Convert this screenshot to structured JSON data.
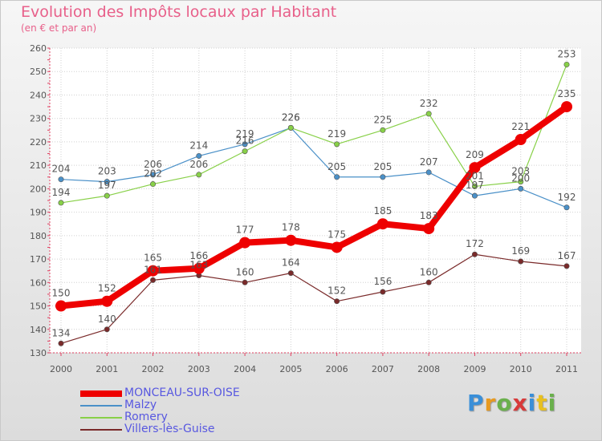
{
  "header": {
    "title": "Evolution des Impôts locaux par Habitant",
    "subtitle": "(en € et par an)"
  },
  "brand": {
    "logo_letters": [
      "P",
      "r",
      "o",
      "x",
      "i",
      "t",
      "i"
    ],
    "logo_colors": [
      "#3a8fd8",
      "#e89a20",
      "#6ab04c",
      "#d83a3a",
      "#3a8fd8",
      "#e8c020",
      "#6ab04c"
    ]
  },
  "chart_data": {
    "type": "line",
    "categories": [
      "2000",
      "2001",
      "2002",
      "2003",
      "2004",
      "2005",
      "2006",
      "2007",
      "2008",
      "2009",
      "2010",
      "2011"
    ],
    "ylim": [
      130,
      260
    ],
    "yticks": [
      "130",
      "140",
      "150",
      "160",
      "170",
      "180",
      "190",
      "200",
      "210",
      "220",
      "230",
      "240",
      "250",
      "260"
    ],
    "grid": true,
    "legend_position": "bottom-left",
    "series": [
      {
        "name": "MONCEAU-SUR-OISE",
        "color": "#ee0000",
        "emphasis": true,
        "values": [
          150,
          152,
          165,
          166,
          177,
          178,
          175,
          185,
          183,
          209,
          221,
          235
        ],
        "labels": [
          "150",
          "152",
          "165",
          "166",
          "177",
          "178",
          "175",
          "185",
          "183",
          "209",
          "221",
          "235"
        ]
      },
      {
        "name": "Malzy",
        "color": "#4a90c8",
        "values": [
          204,
          203,
          206,
          214,
          219,
          226,
          205,
          205,
          207,
          197,
          200,
          192
        ],
        "labels": [
          "204",
          "203",
          "206",
          "214",
          "219",
          "226",
          "205",
          "205",
          "207",
          "197",
          "200",
          "192"
        ]
      },
      {
        "name": "Romery",
        "color": "#88d048",
        "values": [
          194,
          197,
          202,
          206,
          216,
          226,
          219,
          225,
          232,
          201,
          203,
          253
        ],
        "labels": [
          "194",
          "197",
          "202",
          "206",
          "216",
          "226",
          "219",
          "225",
          "232",
          "201",
          "203",
          "253"
        ]
      },
      {
        "name": "Villers-lès-Guise",
        "color": "#7a2a2a",
        "values": [
          134,
          140,
          161,
          163,
          160,
          164,
          152,
          156,
          160,
          172,
          169,
          167
        ],
        "labels": [
          "134",
          "140",
          "161",
          "163",
          "160",
          "164",
          "152",
          "156",
          "160",
          "172",
          "169",
          "167"
        ]
      }
    ]
  }
}
